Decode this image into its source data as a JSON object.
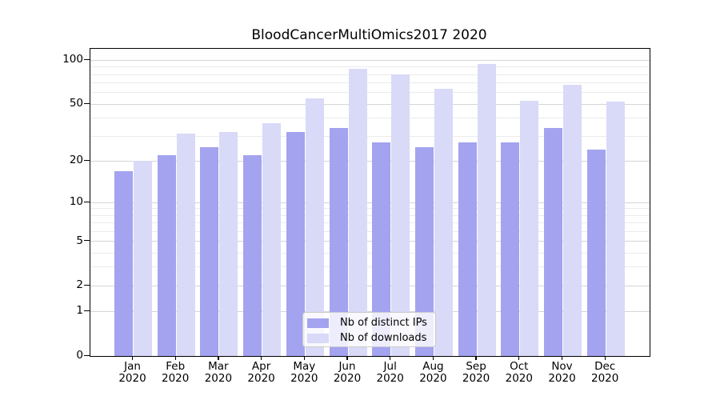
{
  "chart_data": {
    "type": "bar",
    "title": "BloodCancerMultiOmics2017 2020",
    "categories": [
      "Jan\n2020",
      "Feb\n2020",
      "Mar\n2020",
      "Apr\n2020",
      "May\n2020",
      "Jun\n2020",
      "Jul\n2020",
      "Aug\n2020",
      "Sep\n2020",
      "Oct\n2020",
      "Nov\n2020",
      "Dec\n2020"
    ],
    "series": [
      {
        "name": "Nb of distinct IPs",
        "color": "#a3a3f0",
        "values": [
          17,
          22,
          25,
          22,
          32,
          34,
          27,
          25,
          27,
          27,
          34,
          24
        ]
      },
      {
        "name": "Nb of downloads",
        "color": "#d9d9f8",
        "values": [
          20,
          31,
          32,
          37,
          55,
          87,
          80,
          64,
          95,
          53,
          68,
          52
        ]
      }
    ],
    "xlabel": "",
    "ylabel": "",
    "yscale": "log1p",
    "ylim": [
      0,
      120
    ],
    "ytick_values": [
      0,
      1,
      2,
      5,
      10,
      20,
      50,
      100
    ],
    "minor_gridline_values": [
      3,
      4,
      6,
      7,
      8,
      9,
      30,
      40,
      60,
      70,
      80,
      90
    ],
    "grid": "on",
    "legend_position": "bottom-center",
    "colors": {
      "axis": "#000000",
      "major_grid": "#d5d5d5",
      "minor_grid": "#ebebeb",
      "background": "#ffffff"
    }
  }
}
